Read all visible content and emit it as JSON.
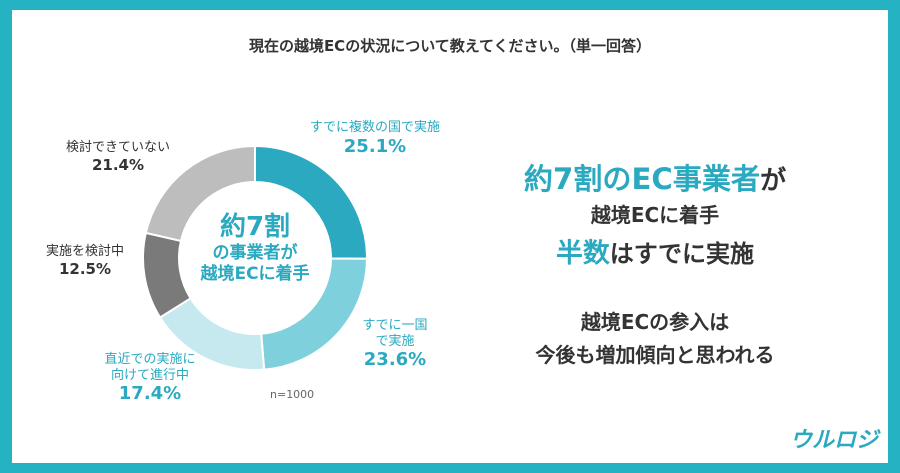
{
  "chart_data": {
    "type": "donut",
    "title": "現在の越境ECの状況について教えてください。（単一回答）",
    "categories": [
      "すでに複数の国で実施",
      "すでに一国\nで実施",
      "直近での実施に\n向けて進行中",
      "実施を検討中",
      "検討できていない"
    ],
    "values": [
      25.1,
      23.6,
      17.4,
      12.5,
      21.4
    ],
    "value_labels": [
      "25.1%",
      "23.6%",
      "17.4%",
      "12.5%",
      "21.4%"
    ],
    "colors": [
      "#2aa9c0",
      "#7fd0dd",
      "#c6e9f0",
      "#7a7a7a",
      "#bdbdbd"
    ],
    "center_text": [
      "約7割",
      "の事業者が",
      "越境ECに着手"
    ],
    "note": "n=1000",
    "callout": [
      [
        {
          "text": "約7割のEC事業者",
          "highlight": true
        },
        {
          "text": "が"
        }
      ],
      [
        {
          "text": "越境ECに着手"
        }
      ],
      [
        {
          "text": "半数",
          "highlight": true
        },
        {
          "text": "はすでに実施"
        }
      ],
      [
        {
          "text": "越境ECの参入は"
        }
      ],
      [
        {
          "text": "今後も増加傾向と思われる"
        }
      ]
    ],
    "logo": "ウルロジ"
  }
}
